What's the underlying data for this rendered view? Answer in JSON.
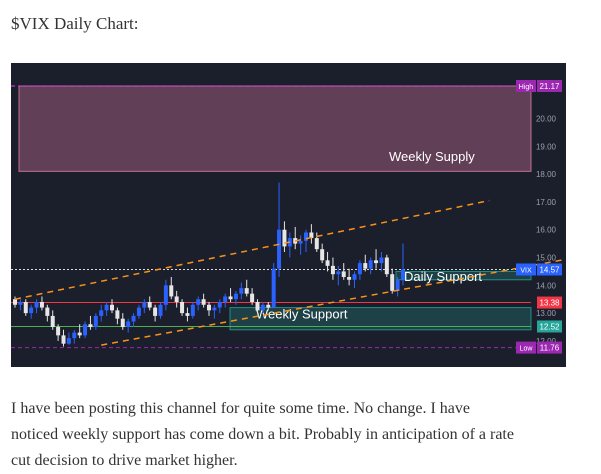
{
  "post": {
    "title": "$VIX Daily Chart:",
    "paragraph_lines": [
      "I have been posting this channel for quite some time. No change. I have",
      "noticed weekly support has come down a bit. Probably in anticipation of a rate",
      "cut decision to drive market higher."
    ]
  },
  "chart_data": {
    "type": "candlestick",
    "zones": [
      {
        "label": "Weekly Supply",
        "from": 18.1,
        "to": 21.17,
        "color": "#e57fa8"
      },
      {
        "label": "Daily Support",
        "from": 14.2,
        "to": 14.5,
        "color": "#26a69a"
      },
      {
        "label": "Weekly Support",
        "from": 12.4,
        "to": 13.2,
        "color": "#26a69a"
      }
    ],
    "price_labels": [
      {
        "tag": "High",
        "value": "21.17",
        "color": "#9c27b0"
      },
      {
        "tag": "VIX",
        "value": "14.57",
        "color": "#2962ff"
      },
      {
        "tag": "",
        "value": "13.38",
        "color": "#f23645"
      },
      {
        "tag": "",
        "value": "12.52",
        "color": "#26a69a"
      },
      {
        "tag": "Low",
        "value": "11.76",
        "color": "#9c27b0"
      }
    ],
    "y_ticks": [
      "20.00",
      "19.00",
      "18.00",
      "17.00",
      "16.00",
      "15.00",
      "14.00",
      "13.00",
      "12.00"
    ],
    "ylim": [
      11.5,
      22
    ],
    "horizontal_lines": [
      {
        "value": 21.17,
        "color": "#e040fb",
        "style": "dashed"
      },
      {
        "value": 14.57,
        "color": "#dddddd",
        "style": "dotted"
      },
      {
        "value": 13.38,
        "color": "#f23645",
        "style": "solid"
      },
      {
        "value": 12.52,
        "color": "#4caf50",
        "style": "solid"
      },
      {
        "value": 11.76,
        "color": "#9c27b0",
        "style": "dashed"
      }
    ],
    "trendlines": [
      {
        "from": [
          0,
          13.5
        ],
        "to": [
          88,
          17.05
        ],
        "color": "#f7931a"
      },
      {
        "from": [
          16,
          11.85
        ],
        "to": [
          104,
          15.0
        ],
        "color": "#f7931a"
      }
    ],
    "candles": [
      [
        13.5,
        13.6,
        13.2,
        13.3
      ],
      [
        13.3,
        13.5,
        13.1,
        13.4
      ],
      [
        13.4,
        13.5,
        12.9,
        13.0
      ],
      [
        13.0,
        13.3,
        12.8,
        13.2
      ],
      [
        13.2,
        13.5,
        13.0,
        13.4
      ],
      [
        13.4,
        13.6,
        13.1,
        13.2
      ],
      [
        13.2,
        13.3,
        12.7,
        12.9
      ],
      [
        12.9,
        13.1,
        12.4,
        12.5
      ],
      [
        12.5,
        12.6,
        12.0,
        12.2
      ],
      [
        12.2,
        12.4,
        11.8,
        11.9
      ],
      [
        11.9,
        12.3,
        11.85,
        12.1
      ],
      [
        12.1,
        12.4,
        11.9,
        12.3
      ],
      [
        12.3,
        12.6,
        12.1,
        12.2
      ],
      [
        12.2,
        12.7,
        12.1,
        12.6
      ],
      [
        12.6,
        12.9,
        12.4,
        12.5
      ],
      [
        12.5,
        13.0,
        12.4,
        12.9
      ],
      [
        12.9,
        13.3,
        12.7,
        13.1
      ],
      [
        13.1,
        13.4,
        12.9,
        13.3
      ],
      [
        13.3,
        13.5,
        13.0,
        13.1
      ],
      [
        13.1,
        13.2,
        12.6,
        12.8
      ],
      [
        12.8,
        13.0,
        12.4,
        12.5
      ],
      [
        12.5,
        12.8,
        12.3,
        12.7
      ],
      [
        12.7,
        13.0,
        12.5,
        12.9
      ],
      [
        12.9,
        13.3,
        12.8,
        13.2
      ],
      [
        13.2,
        13.5,
        13.0,
        13.4
      ],
      [
        13.4,
        13.6,
        13.1,
        13.2
      ],
      [
        13.2,
        13.3,
        12.7,
        12.9
      ],
      [
        12.9,
        13.4,
        12.8,
        13.3
      ],
      [
        13.3,
        14.2,
        13.1,
        14.0
      ],
      [
        14.0,
        14.3,
        13.5,
        13.6
      ],
      [
        13.6,
        13.8,
        13.2,
        13.4
      ],
      [
        13.4,
        13.5,
        12.9,
        13.0
      ],
      [
        13.0,
        13.2,
        12.7,
        12.9
      ],
      [
        12.9,
        13.4,
        12.8,
        13.3
      ],
      [
        13.3,
        13.6,
        13.1,
        13.5
      ],
      [
        13.5,
        13.7,
        13.2,
        13.3
      ],
      [
        13.3,
        13.4,
        12.9,
        13.1
      ],
      [
        13.1,
        13.3,
        12.8,
        13.2
      ],
      [
        13.2,
        13.5,
        13.0,
        13.4
      ],
      [
        13.4,
        13.7,
        13.2,
        13.6
      ],
      [
        13.6,
        13.9,
        13.4,
        13.5
      ],
      [
        13.5,
        13.8,
        13.3,
        13.7
      ],
      [
        13.7,
        14.1,
        13.5,
        13.9
      ],
      [
        13.9,
        14.2,
        13.6,
        13.7
      ],
      [
        13.7,
        13.9,
        13.3,
        13.4
      ],
      [
        13.4,
        13.5,
        13.0,
        13.1
      ],
      [
        13.1,
        13.4,
        13.0,
        13.3
      ],
      [
        13.3,
        13.4,
        13.1,
        13.2
      ],
      [
        13.2,
        14.8,
        13.2,
        14.6
      ],
      [
        14.6,
        17.7,
        14.3,
        16.0
      ],
      [
        16.0,
        16.3,
        15.2,
        15.4
      ],
      [
        15.4,
        15.9,
        15.0,
        15.7
      ],
      [
        15.7,
        16.1,
        15.3,
        15.5
      ],
      [
        15.5,
        15.8,
        15.1,
        15.6
      ],
      [
        15.6,
        16.0,
        15.2,
        15.9
      ],
      [
        15.9,
        16.2,
        15.5,
        15.7
      ],
      [
        15.7,
        15.9,
        15.2,
        15.3
      ],
      [
        15.3,
        15.5,
        14.8,
        14.9
      ],
      [
        14.9,
        15.2,
        14.5,
        14.7
      ],
      [
        14.7,
        15.0,
        14.2,
        14.4
      ],
      [
        14.4,
        14.7,
        14.0,
        14.5
      ],
      [
        14.5,
        14.8,
        14.2,
        14.3
      ],
      [
        14.3,
        14.6,
        14.0,
        14.2
      ],
      [
        14.2,
        14.5,
        13.9,
        14.4
      ],
      [
        14.4,
        14.9,
        14.2,
        14.8
      ],
      [
        14.8,
        15.1,
        14.5,
        14.6
      ],
      [
        14.6,
        15.0,
        14.4,
        14.9
      ],
      [
        14.9,
        15.3,
        14.6,
        14.8
      ],
      [
        14.8,
        15.2,
        14.5,
        15.0
      ],
      [
        15.0,
        15.1,
        14.3,
        14.4
      ],
      [
        14.4,
        14.6,
        13.7,
        13.8
      ],
      [
        13.8,
        14.3,
        13.6,
        14.2
      ],
      [
        14.2,
        15.5,
        14.0,
        14.57
      ]
    ]
  }
}
